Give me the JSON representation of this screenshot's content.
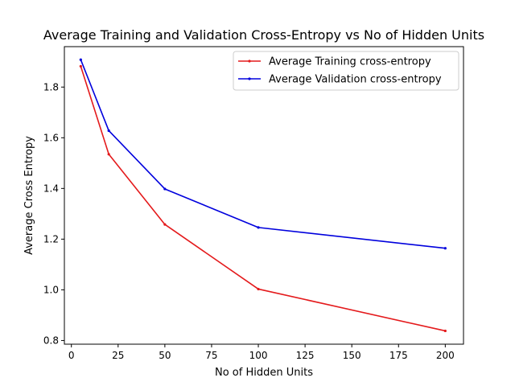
{
  "chart_data": {
    "type": "line",
    "title": "Average Training and Validation Cross-Entropy vs No of Hidden Units",
    "xlabel": "No of Hidden Units",
    "ylabel": "Average Cross Entropy",
    "xlim": [
      -3.75,
      209.75
    ],
    "ylim": [
      0.7855,
      1.9595
    ],
    "xticks": [
      0,
      25,
      50,
      75,
      100,
      125,
      150,
      175,
      200
    ],
    "yticks": [
      0.8,
      1.0,
      1.2,
      1.4,
      1.6,
      1.8
    ],
    "ytick_labels": [
      "0.8",
      "1.0",
      "1.2",
      "1.4",
      "1.6",
      "1.8"
    ],
    "grid": false,
    "legend_position": "top-right",
    "x": [
      5,
      20,
      50,
      100,
      200
    ],
    "series": [
      {
        "name": "Average Training cross-entropy",
        "color": "#e41a1c",
        "values": [
          1.882,
          1.535,
          1.258,
          1.003,
          0.838
        ]
      },
      {
        "name": "Average Validation cross-entropy",
        "color": "#0000dd",
        "values": [
          1.908,
          1.628,
          1.398,
          1.246,
          1.164
        ]
      }
    ]
  }
}
